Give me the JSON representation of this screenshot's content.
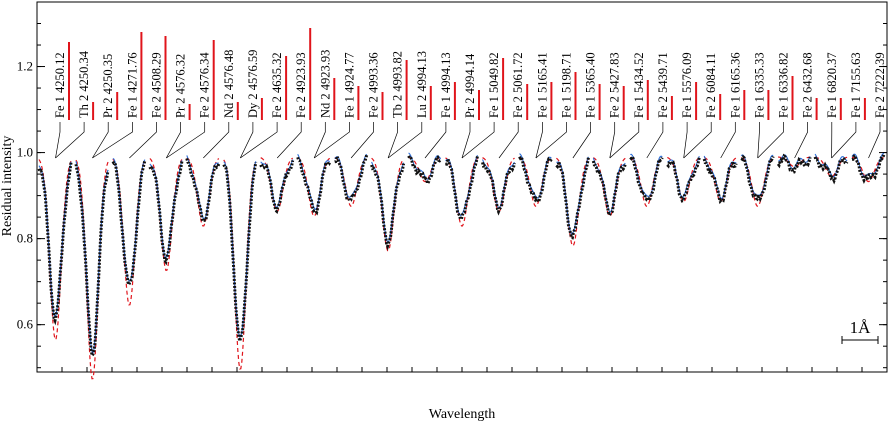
{
  "chart_data": {
    "type": "line",
    "xlabel": "Wavelength",
    "ylabel": "Residual intensity",
    "ylim": [
      0.49,
      1.35
    ],
    "yticks": [
      0.6,
      0.8,
      1.0,
      1.2
    ],
    "grid": false,
    "scale_bar": {
      "label": "1Å",
      "angstrom": 1
    },
    "colors": {
      "observed": "#111111",
      "fit": "#2e6fd8",
      "synthetic": "#e0141b",
      "tick": "#e0141b",
      "axis": "#000000"
    },
    "lines": [
      {
        "ion": "Fe 1",
        "wavelength": "4250.12",
        "strength": 0.78
      },
      {
        "ion": "Th 2",
        "wavelength": "4250.34",
        "strength": 0.18
      },
      {
        "ion": "Pr 2",
        "wavelength": "4250.35",
        "strength": 0.28
      },
      {
        "ion": "Fe 1",
        "wavelength": "4271.76",
        "strength": 0.88
      },
      {
        "ion": "Fe 2",
        "wavelength": "4508.29",
        "strength": 0.84
      },
      {
        "ion": "Pr 2",
        "wavelength": "4576.32",
        "strength": 0.16
      },
      {
        "ion": "Fe 2",
        "wavelength": "4576.34",
        "strength": 0.8
      },
      {
        "ion": "Nd 2",
        "wavelength": "4576.48",
        "strength": 0.18
      },
      {
        "ion": "Dy 2",
        "wavelength": "4576.59",
        "strength": 0.22
      },
      {
        "ion": "Fe 2",
        "wavelength": "4635.32",
        "strength": 0.64
      },
      {
        "ion": "Fe 2",
        "wavelength": "4923.93",
        "strength": 0.92
      },
      {
        "ion": "Nd 2",
        "wavelength": "4923.93",
        "strength": 0.42
      },
      {
        "ion": "Fe 1",
        "wavelength": "4924.77",
        "strength": 0.34
      },
      {
        "ion": "Fe 2",
        "wavelength": "4993.36",
        "strength": 0.28
      },
      {
        "ion": "Tb 2",
        "wavelength": "4993.82",
        "strength": 0.6
      },
      {
        "ion": "Lu 2",
        "wavelength": "4994.13",
        "strength": 0.34
      },
      {
        "ion": "Fe 1",
        "wavelength": "4994.13",
        "strength": 0.38
      },
      {
        "ion": "Pr 2",
        "wavelength": "4994.14",
        "strength": 0.3
      },
      {
        "ion": "Fe 1",
        "wavelength": "5049.82",
        "strength": 0.62
      },
      {
        "ion": "Fe 2",
        "wavelength": "5061.72",
        "strength": 0.36
      },
      {
        "ion": "Fe 1",
        "wavelength": "5165.41",
        "strength": 0.38
      },
      {
        "ion": "Fe 1",
        "wavelength": "5198.71",
        "strength": 0.48
      },
      {
        "ion": "Fe 1",
        "wavelength": "5365.40",
        "strength": 0.36
      },
      {
        "ion": "Fe 2",
        "wavelength": "5427.83",
        "strength": 0.34
      },
      {
        "ion": "Fe 1",
        "wavelength": "5434.52",
        "strength": 0.4
      },
      {
        "ion": "Fe 2",
        "wavelength": "5439.71",
        "strength": 0.24
      },
      {
        "ion": "Fe 1",
        "wavelength": "5576.09",
        "strength": 0.38
      },
      {
        "ion": "Fe 2",
        "wavelength": "6084.11",
        "strength": 0.26
      },
      {
        "ion": "Fe 1",
        "wavelength": "6165.36",
        "strength": 0.3
      },
      {
        "ion": "Fe 1",
        "wavelength": "6335.33",
        "strength": 0.3
      },
      {
        "ion": "Fe 1",
        "wavelength": "6336.82",
        "strength": 0.44
      },
      {
        "ion": "Fe 2",
        "wavelength": "6432.68",
        "strength": 0.22
      },
      {
        "ion": "Fe 1",
        "wavelength": "6820.37",
        "strength": 0.22
      },
      {
        "ion": "Fe 1",
        "wavelength": "7155.63",
        "strength": 0.22
      },
      {
        "ion": "Fe 2",
        "wavelength": "7222.39",
        "strength": 0.46
      }
    ],
    "panels": [
      {
        "index": 1,
        "min_intensity": 0.63
      },
      {
        "index": 2,
        "min_intensity": 0.55
      },
      {
        "index": 3,
        "min_intensity": 0.7
      },
      {
        "index": 4,
        "min_intensity": 0.77
      },
      {
        "index": 5,
        "min_intensity": 0.86
      },
      {
        "index": 6,
        "min_intensity": 0.57
      },
      {
        "index": 7,
        "min_intensity": 0.89
      },
      {
        "index": 8,
        "min_intensity": 0.88
      },
      {
        "index": 9,
        "min_intensity": 0.9
      },
      {
        "index": 10,
        "min_intensity": 0.81
      },
      {
        "index": 11,
        "min_intensity": 0.95
      },
      {
        "index": 12,
        "min_intensity": 0.86
      },
      {
        "index": 13,
        "min_intensity": 0.89
      },
      {
        "index": 14,
        "min_intensity": 0.9
      },
      {
        "index": 15,
        "min_intensity": 0.82
      },
      {
        "index": 16,
        "min_intensity": 0.88
      },
      {
        "index": 17,
        "min_intensity": 0.9
      },
      {
        "index": 18,
        "min_intensity": 0.91
      },
      {
        "index": 19,
        "min_intensity": 0.91
      },
      {
        "index": 20,
        "min_intensity": 0.9
      },
      {
        "index": 21,
        "min_intensity": 0.98
      },
      {
        "index": 22,
        "min_intensity": 0.96
      },
      {
        "index": 23,
        "min_intensity": 0.95
      }
    ]
  }
}
